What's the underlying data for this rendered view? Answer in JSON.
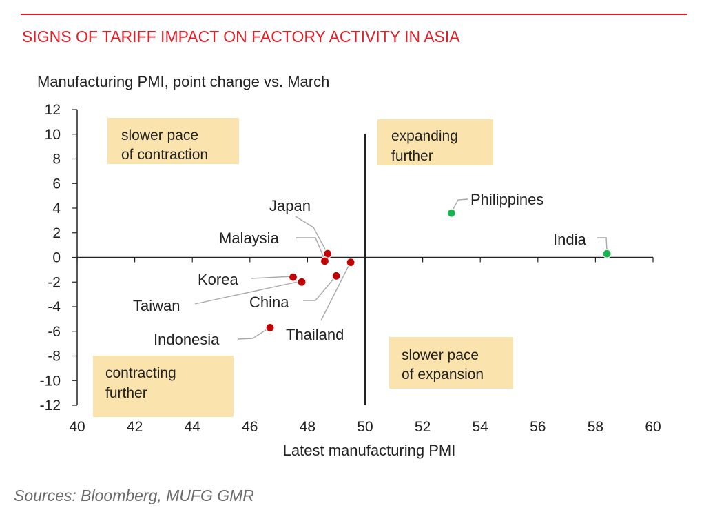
{
  "title": "SIGNS OF TARIFF IMPACT ON FACTORY ACTIVITY IN ASIA",
  "source": "Sources:  Bloomberg, MUFG GMR",
  "colors": {
    "title": "#e41e26",
    "negative_point": "#c00000",
    "positive_point": "#19b34f",
    "quadrant_box": "#fbe3ad",
    "axis": "#222222",
    "leader": "#a9a9a9",
    "source": "#6b6b6b"
  },
  "chart_data": {
    "type": "scatter",
    "title": "SIGNS OF TARIFF IMPACT ON FACTORY ACTIVITY IN ASIA",
    "xlabel": "Latest manufacturing PMI",
    "ylabel": "Manufacturing PMI, point change vs. March",
    "xlim": [
      40,
      60
    ],
    "ylim": [
      -12,
      12
    ],
    "x_ticks": [
      40,
      42,
      44,
      46,
      48,
      50,
      52,
      54,
      56,
      58,
      60
    ],
    "y_ticks": [
      12,
      10,
      8,
      6,
      4,
      2,
      0,
      -2,
      -4,
      -6,
      -8,
      -10,
      -12
    ],
    "y_tick_labels": [
      "12",
      "10",
      "8",
      "6",
      "4",
      "2",
      "0",
      "-2",
      "-4",
      "-6",
      "-8",
      "-10",
      "-12"
    ],
    "reference_line_x": 50,
    "grid": false,
    "points": [
      {
        "name": "Japan",
        "x": 48.7,
        "y": 0.3,
        "color": "red"
      },
      {
        "name": "Malaysia",
        "x": 48.6,
        "y": -0.3,
        "color": "red"
      },
      {
        "name": "Korea",
        "x": 47.5,
        "y": -1.6,
        "color": "red"
      },
      {
        "name": "Taiwan",
        "x": 47.8,
        "y": -2.0,
        "color": "red"
      },
      {
        "name": "China",
        "x": 49.0,
        "y": -1.5,
        "color": "red"
      },
      {
        "name": "Thailand",
        "x": 49.5,
        "y": -0.4,
        "color": "red"
      },
      {
        "name": "Indonesia",
        "x": 46.7,
        "y": -5.7,
        "color": "red"
      },
      {
        "name": "Philippines",
        "x": 53.0,
        "y": 3.6,
        "color": "green"
      },
      {
        "name": "India",
        "x": 58.4,
        "y": 0.3,
        "color": "green"
      }
    ],
    "quadrant_labels": [
      {
        "id": "slower-contraction",
        "lines": [
          "slower pace",
          "of contraction"
        ]
      },
      {
        "id": "expanding-further",
        "lines": [
          "expanding",
          "further"
        ]
      },
      {
        "id": "contracting-further",
        "lines": [
          "contracting",
          "further"
        ]
      },
      {
        "id": "slower-expansion",
        "lines": [
          "slower pace",
          "of expansion"
        ]
      }
    ]
  }
}
